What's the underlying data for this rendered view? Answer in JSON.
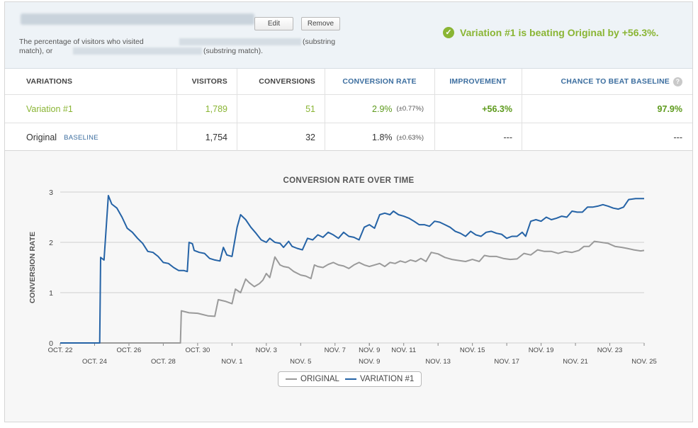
{
  "header": {
    "edit_label": "Edit",
    "remove_label": "Remove",
    "goal_part1": "The percentage of visitors who visited",
    "goal_part2": "(substring",
    "goal_part3": "match), or",
    "goal_part4": "(substring match).",
    "beating_text": "Variation #1 is beating Original by +56.3%.",
    "accent_color": "#8ab534"
  },
  "table": {
    "headers": {
      "variations": "VARIATIONS",
      "visitors": "VISITORS",
      "conversions": "CONVERSIONS",
      "conversion_rate": "CONVERSION RATE",
      "improvement": "IMPROVEMENT",
      "chance": "CHANCE TO BEAT BASELINE",
      "chance_help": "?"
    },
    "rows": [
      {
        "name": "Variation #1",
        "badge": "",
        "visitors": "1,789",
        "conversions": "51",
        "rate": "2.9%",
        "rate_ci": "(±0.77%)",
        "improvement": "+56.3%",
        "chance": "97.9%"
      },
      {
        "name": "Original",
        "badge": "BASELINE",
        "visitors": "1,754",
        "conversions": "32",
        "rate": "1.8%",
        "rate_ci": "(±0.63%)",
        "improvement": "---",
        "chance": "---"
      }
    ]
  },
  "chart_data": {
    "type": "line",
    "title": "CONVERSION RATE OVER TIME",
    "xlabel": "",
    "ylabel": "CONVERSION RATE",
    "ylim": [
      0,
      3
    ],
    "yticks": [
      "0",
      "1",
      "2",
      "3"
    ],
    "xlim": [
      0,
      34
    ],
    "xticks_top": [
      "OCT. 22",
      "OCT. 26",
      "OCT. 30",
      "NOV. 3",
      "NOV. 7",
      "NOV. 9",
      "NOV. 11",
      "NOV. 15",
      "NOV. 19",
      "NOV. 23"
    ],
    "xticks_top_pos": [
      0,
      4,
      8,
      12,
      16,
      18,
      20,
      24,
      28,
      32
    ],
    "xticks_bottom": [
      "OCT. 24",
      "OCT. 28",
      "NOV. 1",
      "NOV. 5",
      "NOV. 9",
      "NOV. 13",
      "NOV. 17",
      "NOV. 21",
      "NOV. 25"
    ],
    "xticks_bottom_pos": [
      2,
      6,
      10,
      14,
      18,
      22,
      26,
      30,
      34
    ],
    "grid": true,
    "legend_position": "bottom-center",
    "series": [
      {
        "name": "ORIGINAL",
        "color": "#9a9a9a",
        "points": [
          [
            0,
            0
          ],
          [
            7,
            0
          ],
          [
            7.05,
            0.64
          ],
          [
            7.5,
            0.6
          ],
          [
            8,
            0.59
          ],
          [
            8.6,
            0.54
          ],
          [
            9,
            0.53
          ],
          [
            9.2,
            0.86
          ],
          [
            9.6,
            0.83
          ],
          [
            10,
            0.78
          ],
          [
            10.2,
            1.07
          ],
          [
            10.5,
            1.0
          ],
          [
            10.8,
            1.27
          ],
          [
            11,
            1.2
          ],
          [
            11.3,
            1.12
          ],
          [
            11.6,
            1.18
          ],
          [
            11.8,
            1.25
          ],
          [
            12,
            1.38
          ],
          [
            12.2,
            1.3
          ],
          [
            12.5,
            1.71
          ],
          [
            12.8,
            1.55
          ],
          [
            13,
            1.52
          ],
          [
            13.3,
            1.5
          ],
          [
            13.6,
            1.42
          ],
          [
            14,
            1.35
          ],
          [
            14.3,
            1.33
          ],
          [
            14.6,
            1.28
          ],
          [
            14.8,
            1.55
          ],
          [
            15,
            1.52
          ],
          [
            15.3,
            1.5
          ],
          [
            15.6,
            1.56
          ],
          [
            15.9,
            1.6
          ],
          [
            16.2,
            1.55
          ],
          [
            16.5,
            1.53
          ],
          [
            16.8,
            1.48
          ],
          [
            17.1,
            1.55
          ],
          [
            17.4,
            1.6
          ],
          [
            17.7,
            1.55
          ],
          [
            18,
            1.52
          ],
          [
            18.3,
            1.55
          ],
          [
            18.6,
            1.58
          ],
          [
            18.9,
            1.52
          ],
          [
            19.2,
            1.6
          ],
          [
            19.5,
            1.58
          ],
          [
            19.8,
            1.63
          ],
          [
            20.1,
            1.6
          ],
          [
            20.4,
            1.65
          ],
          [
            20.7,
            1.62
          ],
          [
            21,
            1.68
          ],
          [
            21.3,
            1.62
          ],
          [
            21.6,
            1.8
          ],
          [
            22,
            1.77
          ],
          [
            22.4,
            1.7
          ],
          [
            22.8,
            1.66
          ],
          [
            23.2,
            1.64
          ],
          [
            23.6,
            1.62
          ],
          [
            24,
            1.66
          ],
          [
            24.4,
            1.62
          ],
          [
            24.7,
            1.74
          ],
          [
            25,
            1.72
          ],
          [
            25.4,
            1.72
          ],
          [
            25.8,
            1.68
          ],
          [
            26.2,
            1.66
          ],
          [
            26.6,
            1.67
          ],
          [
            27,
            1.78
          ],
          [
            27.4,
            1.75
          ],
          [
            27.8,
            1.85
          ],
          [
            28.2,
            1.82
          ],
          [
            28.6,
            1.82
          ],
          [
            29,
            1.78
          ],
          [
            29.4,
            1.82
          ],
          [
            29.8,
            1.8
          ],
          [
            30.2,
            1.84
          ],
          [
            30.5,
            1.92
          ],
          [
            30.8,
            1.92
          ],
          [
            31.1,
            2.02
          ],
          [
            31.5,
            2.0
          ],
          [
            31.9,
            1.98
          ],
          [
            32.3,
            1.92
          ],
          [
            32.7,
            1.9
          ],
          [
            33,
            1.88
          ],
          [
            33.4,
            1.85
          ],
          [
            33.8,
            1.83
          ],
          [
            34,
            1.84
          ]
        ]
      },
      {
        "name": "VARIATION #1",
        "color": "#2563a6",
        "points": [
          [
            0,
            0
          ],
          [
            2.3,
            0
          ],
          [
            2.35,
            1.7
          ],
          [
            2.55,
            1.65
          ],
          [
            2.8,
            2.93
          ],
          [
            3,
            2.76
          ],
          [
            3.3,
            2.68
          ],
          [
            3.6,
            2.5
          ],
          [
            3.9,
            2.28
          ],
          [
            4.2,
            2.2
          ],
          [
            4.5,
            2.08
          ],
          [
            4.8,
            1.98
          ],
          [
            5.1,
            1.82
          ],
          [
            5.4,
            1.8
          ],
          [
            5.7,
            1.72
          ],
          [
            6,
            1.6
          ],
          [
            6.3,
            1.58
          ],
          [
            6.6,
            1.5
          ],
          [
            6.9,
            1.44
          ],
          [
            7.2,
            1.44
          ],
          [
            7.4,
            1.42
          ],
          [
            7.5,
            2.0
          ],
          [
            7.7,
            1.97
          ],
          [
            7.8,
            1.84
          ],
          [
            8.1,
            1.8
          ],
          [
            8.4,
            1.78
          ],
          [
            8.7,
            1.68
          ],
          [
            9,
            1.65
          ],
          [
            9.3,
            1.63
          ],
          [
            9.5,
            1.9
          ],
          [
            9.7,
            1.75
          ],
          [
            10,
            1.72
          ],
          [
            10.3,
            2.3
          ],
          [
            10.5,
            2.55
          ],
          [
            10.8,
            2.45
          ],
          [
            11.1,
            2.3
          ],
          [
            11.4,
            2.18
          ],
          [
            11.7,
            2.05
          ],
          [
            12,
            2.0
          ],
          [
            12.2,
            2.08
          ],
          [
            12.5,
            2.0
          ],
          [
            12.8,
            1.98
          ],
          [
            13,
            1.9
          ],
          [
            13.3,
            2.02
          ],
          [
            13.5,
            1.92
          ],
          [
            13.8,
            1.88
          ],
          [
            14.1,
            1.85
          ],
          [
            14.4,
            2.08
          ],
          [
            14.7,
            2.05
          ],
          [
            15,
            2.15
          ],
          [
            15.3,
            2.1
          ],
          [
            15.6,
            2.2
          ],
          [
            15.9,
            2.15
          ],
          [
            16.2,
            2.08
          ],
          [
            16.5,
            2.2
          ],
          [
            16.8,
            2.12
          ],
          [
            17.1,
            2.1
          ],
          [
            17.4,
            2.05
          ],
          [
            17.7,
            2.3
          ],
          [
            18,
            2.35
          ],
          [
            18.3,
            2.28
          ],
          [
            18.6,
            2.55
          ],
          [
            18.9,
            2.58
          ],
          [
            19.2,
            2.55
          ],
          [
            19.4,
            2.62
          ],
          [
            19.7,
            2.55
          ],
          [
            20,
            2.52
          ],
          [
            20.3,
            2.48
          ],
          [
            20.6,
            2.42
          ],
          [
            20.9,
            2.35
          ],
          [
            21.2,
            2.35
          ],
          [
            21.5,
            2.32
          ],
          [
            21.8,
            2.42
          ],
          [
            22.1,
            2.4
          ],
          [
            22.4,
            2.35
          ],
          [
            22.7,
            2.3
          ],
          [
            23,
            2.22
          ],
          [
            23.3,
            2.18
          ],
          [
            23.6,
            2.12
          ],
          [
            23.9,
            2.22
          ],
          [
            24.2,
            2.15
          ],
          [
            24.5,
            2.12
          ],
          [
            24.8,
            2.2
          ],
          [
            25.1,
            2.22
          ],
          [
            25.4,
            2.18
          ],
          [
            25.7,
            2.16
          ],
          [
            26,
            2.08
          ],
          [
            26.3,
            2.12
          ],
          [
            26.6,
            2.12
          ],
          [
            26.9,
            2.2
          ],
          [
            27.1,
            2.12
          ],
          [
            27.4,
            2.42
          ],
          [
            27.7,
            2.45
          ],
          [
            28,
            2.42
          ],
          [
            28.3,
            2.5
          ],
          [
            28.6,
            2.45
          ],
          [
            28.9,
            2.48
          ],
          [
            29.2,
            2.52
          ],
          [
            29.5,
            2.5
          ],
          [
            29.8,
            2.62
          ],
          [
            30.1,
            2.6
          ],
          [
            30.4,
            2.6
          ],
          [
            30.7,
            2.7
          ],
          [
            31,
            2.7
          ],
          [
            31.3,
            2.72
          ],
          [
            31.6,
            2.75
          ],
          [
            31.9,
            2.72
          ],
          [
            32.2,
            2.68
          ],
          [
            32.5,
            2.66
          ],
          [
            32.8,
            2.7
          ],
          [
            33.1,
            2.85
          ],
          [
            33.5,
            2.87
          ],
          [
            34,
            2.87
          ]
        ]
      }
    ]
  }
}
